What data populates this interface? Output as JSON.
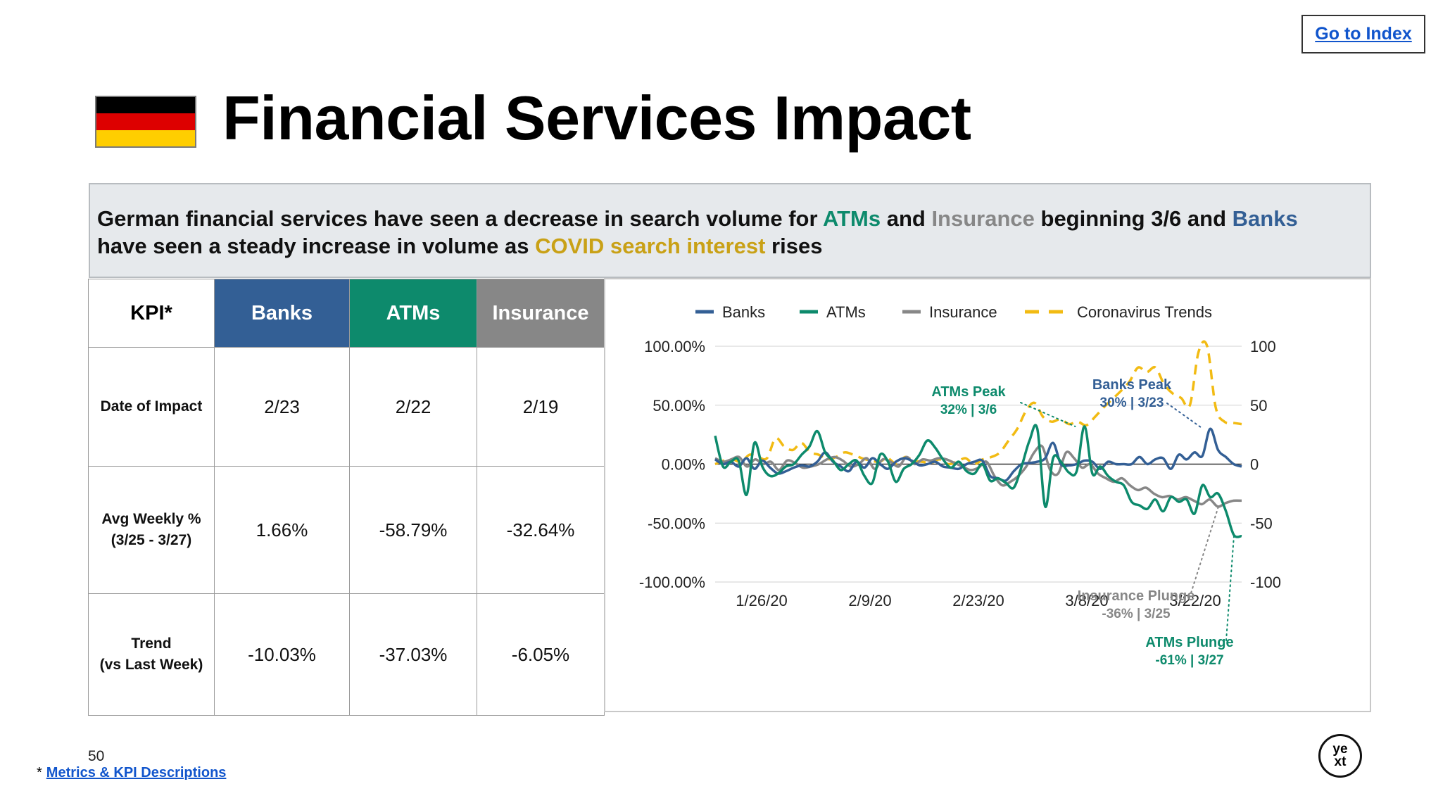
{
  "header": {
    "go_to_index": "Go to Index",
    "title": "Financial Services Impact"
  },
  "flag": {
    "colors": [
      "#000000",
      "#dd0000",
      "#ffce00"
    ]
  },
  "summary": {
    "t1": "German financial services have seen a decrease in search volume for ",
    "atms": "ATMs",
    "t2": " and ",
    "insurance": "Insurance",
    "t3": " beginning 3/6 and ",
    "banks": "Banks",
    "t4": " have seen a steady increase in volume as ",
    "covid": "COVID search interest",
    "t5": " rises"
  },
  "table": {
    "headers": [
      "KPI*",
      "Banks",
      "ATMs",
      "Insurance"
    ],
    "header_colors": [
      "#ffffff",
      "#335f95",
      "#0d8a6c",
      "#878787"
    ],
    "rows": [
      {
        "label": [
          "Date of Impact"
        ],
        "values": [
          "2/23",
          "2/22",
          "2/19"
        ]
      },
      {
        "label": [
          "Avg Weekly %",
          "(3/25 - 3/27)"
        ],
        "values": [
          "1.66%",
          "-58.79%",
          "-32.64%"
        ]
      },
      {
        "label": [
          "Trend",
          "(vs Last Week)"
        ],
        "values": [
          "-10.03%",
          "-37.03%",
          "-6.05%"
        ]
      }
    ]
  },
  "chart_data": {
    "type": "line",
    "x_ticks": [
      "1/26/20",
      "2/9/20",
      "2/23/20",
      "3/8/20",
      "3/22/20"
    ],
    "x_tick_days": [
      6,
      20,
      34,
      48,
      62
    ],
    "x_range_days": [
      0,
      68
    ],
    "x_start_date": "1/20/20",
    "y_left": {
      "ticks": [
        100,
        50,
        0,
        -50,
        -100
      ],
      "labels": [
        "100.00%",
        "50.00%",
        "0.00%",
        "-50.00%",
        "-100.00%"
      ],
      "range": [
        -100,
        100
      ]
    },
    "y_right": {
      "ticks": [
        100,
        50,
        0,
        -50,
        -100
      ],
      "labels": [
        "100",
        "50",
        "0",
        "-50",
        "-100"
      ],
      "range": [
        -100,
        100
      ]
    },
    "legend": [
      "Banks",
      "ATMs",
      "Insurance",
      "Coronavirus Trends"
    ],
    "series": [
      {
        "name": "Banks",
        "color": "#335f95",
        "dash": false,
        "axis": "left",
        "values": [
          4,
          0,
          2,
          -2,
          5,
          -4,
          3,
          -3,
          -8,
          -6,
          -3,
          -1,
          -2,
          2,
          10,
          2,
          -2,
          -6,
          2,
          -3,
          5,
          0,
          -4,
          2,
          5,
          3,
          -1,
          0,
          2,
          -2,
          -3,
          -4,
          0,
          2,
          3,
          -10,
          -12,
          -14,
          -6,
          0,
          1,
          2,
          5,
          18,
          0,
          -1,
          0,
          3,
          2,
          -4,
          2,
          0,
          0,
          0,
          6,
          0,
          4,
          5,
          -4,
          8,
          4,
          10,
          7,
          30,
          12,
          6,
          0,
          -2
        ]
      },
      {
        "name": "ATMs",
        "color": "#0d8a6c",
        "dash": false,
        "axis": "left",
        "values": [
          24,
          -2,
          2,
          3,
          -26,
          18,
          -2,
          -10,
          -8,
          -2,
          0,
          8,
          15,
          28,
          10,
          3,
          -5,
          0,
          3,
          -10,
          -16,
          8,
          2,
          -15,
          -4,
          0,
          8,
          20,
          14,
          4,
          -3,
          2,
          -6,
          -8,
          0,
          -14,
          -12,
          -16,
          -20,
          -2,
          20,
          30,
          -36,
          5,
          2,
          -7,
          -6,
          32,
          -8,
          -2,
          -10,
          -15,
          -18,
          -32,
          -35,
          -38,
          -30,
          -40,
          -28,
          -32,
          -30,
          -42,
          -18,
          -28,
          -25,
          -40,
          -60,
          -61
        ]
      },
      {
        "name": "Insurance",
        "color": "#878787",
        "dash": false,
        "axis": "left",
        "values": [
          5,
          2,
          4,
          6,
          -2,
          4,
          0,
          2,
          -5,
          3,
          1,
          -3,
          -2,
          0,
          4,
          6,
          3,
          -2,
          0,
          5,
          -4,
          4,
          2,
          -2,
          6,
          0,
          4,
          3,
          5,
          4,
          1,
          -2,
          -5,
          -3,
          2,
          -10,
          -18,
          -15,
          -10,
          -2,
          10,
          15,
          -5,
          -8,
          10,
          5,
          -3,
          0,
          -8,
          -12,
          -15,
          -12,
          -18,
          -22,
          -20,
          -25,
          -28,
          -27,
          -30,
          -28,
          -31,
          -34,
          -30,
          -36,
          -33,
          -31,
          -31
        ]
      },
      {
        "name": "Coronavirus Trends",
        "color": "#f2bb13",
        "dash": true,
        "axis": "right",
        "values": [
          0,
          3,
          4,
          2,
          8,
          6,
          5,
          22,
          15,
          12,
          18,
          10,
          8,
          4,
          6,
          10,
          8,
          5,
          3,
          2,
          5,
          0,
          6,
          3,
          2,
          1,
          4,
          0,
          2,
          5,
          0,
          4,
          6,
          10,
          20,
          30,
          45,
          52,
          40,
          36,
          38,
          34,
          36,
          33,
          40,
          48,
          55,
          62,
          70,
          82,
          78,
          82,
          68,
          60,
          56,
          50,
          95,
          100,
          48,
          36,
          35,
          34
        ]
      }
    ],
    "annotations": [
      {
        "label": "ATMs Peak",
        "sub": "32% | 3/6",
        "color": "#0d8a6c"
      },
      {
        "label": "Banks Peak",
        "sub": "30% | 3/23",
        "color": "#335f95"
      },
      {
        "label": "Insurance Plunge",
        "sub": "-36% | 3/25",
        "color": "#878787"
      },
      {
        "label": "ATMs Plunge",
        "sub": "-61% | 3/27",
        "color": "#0d8a6c"
      }
    ]
  },
  "footer": {
    "page_number": "50",
    "asterisk": "*",
    "link": "Metrics & KPI Descriptions"
  },
  "logo": {
    "line1": "ye",
    "line2": "xt"
  }
}
